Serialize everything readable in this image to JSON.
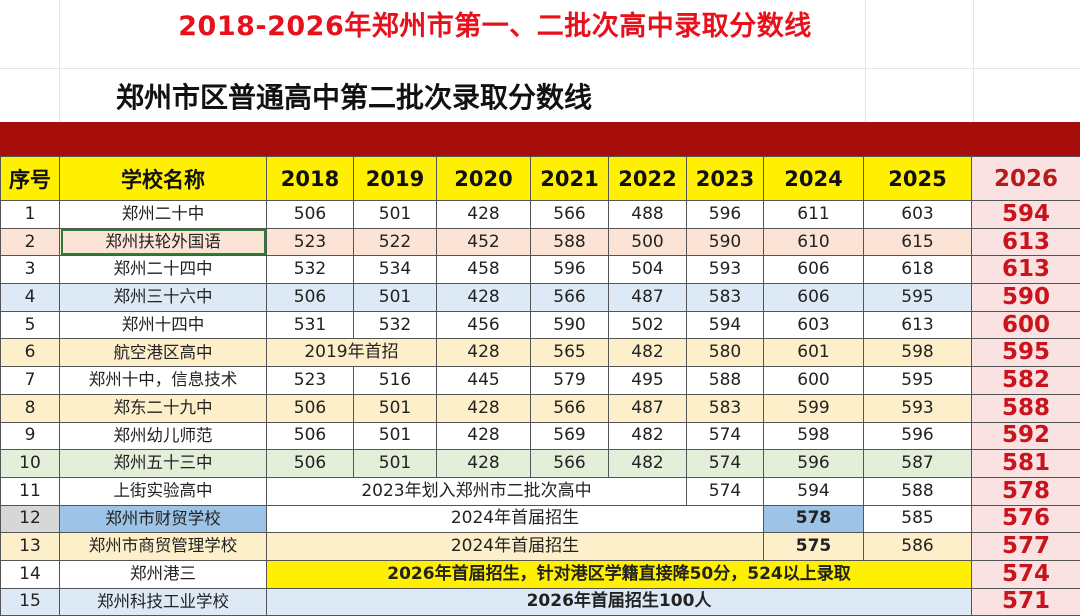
{
  "main_title": "2018-2026年郑州市第一、二批次高中录取分数线",
  "sub_title": "郑州市区普通高中第二批次录取分数线",
  "headers": [
    "序号",
    "学校名称",
    "2018",
    "2019",
    "2020",
    "2021",
    "2022",
    "2023",
    "2024",
    "2025",
    "2026"
  ],
  "rows": [
    {
      "no": "1",
      "name": "郑州二十中",
      "y2018": "506",
      "y2019": "501",
      "y2020": "428",
      "y2021": "566",
      "y2022": "488",
      "y2023": "596",
      "y2024": "611",
      "y2025": "603",
      "y2026": "594"
    },
    {
      "no": "2",
      "name": "郑州扶轮外国语",
      "y2018": "523",
      "y2019": "522",
      "y2020": "452",
      "y2021": "588",
      "y2022": "500",
      "y2023": "590",
      "y2024": "610",
      "y2025": "615",
      "y2026": "613"
    },
    {
      "no": "3",
      "name": "郑州二十四中",
      "y2018": "532",
      "y2019": "534",
      "y2020": "458",
      "y2021": "596",
      "y2022": "504",
      "y2023": "593",
      "y2024": "606",
      "y2025": "618",
      "y2026": "613"
    },
    {
      "no": "4",
      "name": "郑州三十六中",
      "y2018": "506",
      "y2019": "501",
      "y2020": "428",
      "y2021": "566",
      "y2022": "487",
      "y2023": "583",
      "y2024": "606",
      "y2025": "595",
      "y2026": "590"
    },
    {
      "no": "5",
      "name": "郑州十四中",
      "y2018": "531",
      "y2019": "532",
      "y2020": "456",
      "y2021": "590",
      "y2022": "502",
      "y2023": "594",
      "y2024": "603",
      "y2025": "613",
      "y2026": "600"
    },
    {
      "no": "6",
      "name": "航空港区高中",
      "note_2018_2019": "2019年首招",
      "y2020": "428",
      "y2021": "565",
      "y2022": "482",
      "y2023": "580",
      "y2024": "601",
      "y2025": "598",
      "y2026": "595"
    },
    {
      "no": "7",
      "name": "郑州十中，信息技术",
      "y2018": "523",
      "y2019": "516",
      "y2020": "445",
      "y2021": "579",
      "y2022": "495",
      "y2023": "588",
      "y2024": "600",
      "y2025": "595",
      "y2026": "582"
    },
    {
      "no": "8",
      "name": "郑东二十九中",
      "y2018": "506",
      "y2019": "501",
      "y2020": "428",
      "y2021": "566",
      "y2022": "487",
      "y2023": "583",
      "y2024": "599",
      "y2025": "593",
      "y2026": "588"
    },
    {
      "no": "9",
      "name": "郑州幼儿师范",
      "y2018": "506",
      "y2019": "501",
      "y2020": "428",
      "y2021": "569",
      "y2022": "482",
      "y2023": "574",
      "y2024": "598",
      "y2025": "596",
      "y2026": "592"
    },
    {
      "no": "10",
      "name": "郑州五十三中",
      "y2018": "506",
      "y2019": "501",
      "y2020": "428",
      "y2021": "566",
      "y2022": "482",
      "y2023": "574",
      "y2024": "596",
      "y2025": "587",
      "y2026": "581"
    },
    {
      "no": "11",
      "name": "上街实验高中",
      "note_2018_2022": "2023年划入郑州市二批次高中",
      "y2023": "574",
      "y2024": "594",
      "y2025": "588",
      "y2026": "578"
    },
    {
      "no": "12",
      "name": "郑州市财贸学校",
      "note_2018_2023": "2024年首届招生",
      "y2024": "578",
      "y2025": "585",
      "y2026": "576"
    },
    {
      "no": "13",
      "name": "郑州市商贸管理学校",
      "note_2018_2023": "2024年首届招生",
      "y2024": "575",
      "y2025": "586",
      "y2026": "577"
    },
    {
      "no": "14",
      "name": "郑州港三",
      "note_2018_2025": "2026年首届招生，针对港区学籍直接降50分，524以上录取",
      "y2026": "574"
    },
    {
      "no": "15",
      "name": "郑州科技工业学校",
      "note_2018_2025": "2026年首届招生100人",
      "y2026": "571"
    }
  ],
  "colors": {
    "title_red": "#e8101a",
    "band_red": "#a70d0b",
    "header_yellow": "#ffef00",
    "score_2026": "#c9141d",
    "row_peach": "#fbe4d6",
    "row_blue": "#dde9f5",
    "row_yellow": "#fdefc9",
    "row_green": "#e3efd9",
    "cell_blue": "#9dc3e6"
  }
}
